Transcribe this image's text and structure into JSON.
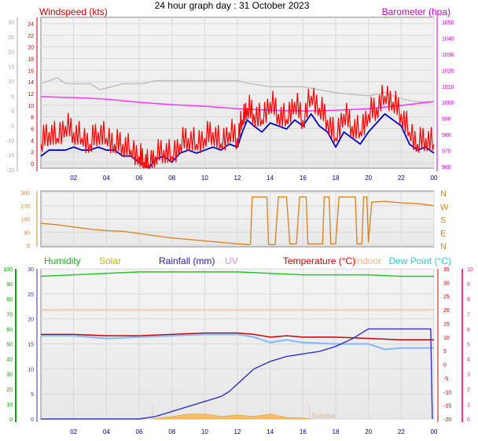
{
  "page": {
    "title": "24 hour graph day : 31 October 2023"
  },
  "colors": {
    "wind_speed": "#ff0000",
    "wind_avg": "#0000cc",
    "gust_bg": "#c0c0c0",
    "barometer": "#ff33ff",
    "wind_dir": "#d8862a",
    "humidity": "#22cc22",
    "solar": "#ccaa22",
    "solar_fill": "#ffb050",
    "rainfall": "#3333cc",
    "uv": "#dd88dd",
    "temperature": "#cc0000",
    "indoor": "#ffc0a0",
    "dew_point": "#88bbff",
    "dew_label": "#33cccc",
    "axis_left": "#00aa00",
    "axis_right_temp": "#ff3377",
    "axis_baro": "#cc00cc",
    "axis_wind": "#cc0000",
    "axis_mid": "#cc0000",
    "hour_labels": "#000088"
  },
  "time_axis": {
    "labels": [
      "02",
      "04",
      "06",
      "08",
      "10",
      "12",
      "14",
      "16",
      "18",
      "20",
      "22",
      "00"
    ]
  },
  "chart_data": [
    {
      "type": "line",
      "panel": "wind_baro",
      "title": "24 hour graph day : 31 October 2023",
      "left_label": "Windspeed (kts)",
      "right_label": "Barometer (hpa)",
      "left_outer_ticks": [
        "30",
        "25",
        "20",
        "15",
        "10",
        "5",
        "0",
        "-5",
        "-10",
        "-15",
        "-20"
      ],
      "left_inner_ticks": [
        "24",
        "22",
        "20",
        "18",
        "16",
        "14",
        "12",
        "10",
        "8",
        "6",
        "4",
        "2",
        "0"
      ],
      "right_ticks": [
        "1050",
        "1040",
        "1030",
        "1020",
        "1010",
        "1000",
        "990",
        "980",
        "970",
        "960"
      ],
      "y_wind_range": [
        0,
        25
      ],
      "y_baro_range": [
        955,
        1050
      ],
      "series": [
        {
          "key": "gust",
          "x_hours": [
            0,
            1,
            1.5,
            3,
            3.6,
            5,
            6.2,
            7,
            9,
            12,
            12.8,
            14,
            16,
            18,
            20,
            21,
            22,
            23,
            24
          ],
          "values": [
            14,
            15,
            14,
            14,
            13,
            14,
            14,
            14.5,
            14.5,
            14.5,
            14,
            13.5,
            13.5,
            12.5,
            12,
            12.5,
            11.5,
            11,
            11
          ]
        },
        {
          "key": "barometer",
          "x_hours": [
            0,
            2,
            4,
            6,
            8,
            10,
            12,
            14,
            16,
            18,
            20,
            22,
            24
          ],
          "values": [
            1000,
            999.5,
            998.5,
            996.5,
            995,
            994,
            992.5,
            991.5,
            991,
            991.5,
            992.5,
            994.5,
            997
          ]
        },
        {
          "key": "wind_avg",
          "x_hours": [
            0,
            0.5,
            1,
            1.5,
            2,
            2.5,
            3,
            3.5,
            4,
            4.5,
            5,
            5.5,
            6,
            6.3,
            6.6,
            7,
            7.5,
            8,
            8.5,
            9,
            9.5,
            10,
            10.5,
            11,
            11.5,
            12,
            12.3,
            12.6,
            13,
            13.5,
            14,
            14.5,
            15,
            15.5,
            16,
            16.5,
            17,
            17.5,
            18,
            18.5,
            19,
            19.5,
            20,
            20.5,
            21,
            21.5,
            22,
            22.5,
            23,
            23.5,
            24
          ],
          "values": [
            2,
            3,
            3,
            3,
            3.5,
            3,
            3,
            3.5,
            3,
            3,
            2,
            2,
            1,
            0.5,
            0,
            1.5,
            2,
            1,
            2.5,
            3,
            2.5,
            3,
            3.5,
            3,
            4,
            3.5,
            6,
            8,
            7,
            6,
            7.5,
            7,
            6.5,
            8,
            7,
            9,
            7,
            6,
            3.5,
            6,
            5,
            4,
            6,
            7.5,
            9,
            8,
            7,
            4,
            3,
            3.5,
            2.5
          ]
        },
        {
          "key": "wind_speed",
          "x_hours": [
            0,
            0.5,
            1,
            1.5,
            2,
            2.5,
            3,
            3.5,
            4,
            4.5,
            5,
            5.5,
            6,
            6.3,
            6.6,
            7,
            7.5,
            8,
            8.5,
            9,
            9.5,
            10,
            10.5,
            11,
            11.5,
            12,
            12.3,
            12.6,
            13,
            13.5,
            14,
            14.5,
            15,
            15.5,
            16,
            16.5,
            17,
            17.5,
            18,
            18.5,
            19,
            19.5,
            20,
            20.5,
            21,
            21.5,
            22,
            22.5,
            23,
            23.5,
            24
          ],
          "values": [
            4,
            6,
            5,
            7,
            6,
            5,
            4,
            6,
            5,
            4,
            4,
            3,
            2,
            1,
            0.5,
            2,
            3,
            2,
            4,
            5,
            4,
            5,
            6,
            4,
            6,
            5,
            8,
            10,
            9,
            8,
            11,
            9,
            8,
            11,
            8,
            12,
            10,
            8,
            5,
            9,
            7,
            6,
            9,
            10,
            12,
            11,
            9,
            6,
            4,
            5,
            4
          ]
        }
      ]
    },
    {
      "type": "line",
      "panel": "wind_direction",
      "left_ticks": [
        "360",
        "270",
        "180",
        "90",
        "0"
      ],
      "right_ticks": [
        "N",
        "W",
        "S",
        "E",
        "N"
      ],
      "y_range": [
        0,
        360
      ],
      "series": [
        {
          "key": "wind_dir",
          "x_hours": [
            0,
            1,
            2,
            3,
            4,
            5,
            6,
            7,
            8,
            9,
            10,
            11,
            11.5,
            12,
            12.8
          ],
          "values": [
            150,
            140,
            125,
            110,
            100,
            95,
            80,
            65,
            50,
            40,
            30,
            20,
            15,
            10,
            5
          ]
        },
        {
          "key": "wind_dir",
          "x_hours": [
            12.8,
            12.9,
            13.8,
            13.9,
            14.3,
            14.5,
            15,
            15.2,
            15.6,
            15.8,
            16.2,
            16.3,
            17.2,
            17.3,
            17.6,
            17.7,
            18,
            18.2,
            19.2,
            19.3,
            19.6,
            19.7,
            19.9,
            20
          ],
          "values": [
            10,
            330,
            330,
            5,
            5,
            330,
            330,
            10,
            10,
            330,
            330,
            10,
            10,
            330,
            330,
            10,
            10,
            330,
            330,
            10,
            10,
            330,
            330,
            20
          ]
        },
        {
          "key": "wind_dir",
          "x_hours": [
            20,
            20.2,
            21,
            22,
            23,
            24
          ],
          "values": [
            20,
            295,
            300,
            290,
            285,
            270
          ]
        }
      ]
    },
    {
      "type": "line",
      "panel": "multi",
      "legend": [
        "Humidity",
        "Solar",
        "Rainfall (mm)",
        "UV",
        "Temperature (°C)",
        "Indoor",
        "Dew Point (°C)"
      ],
      "left_ticks": [
        "100",
        "90",
        "80",
        "70",
        "60",
        "50",
        "40",
        "30",
        "20",
        "10",
        "0"
      ],
      "inner_ticks": [
        "30",
        "25",
        "20",
        "15",
        "10",
        "5",
        "0"
      ],
      "right_temp_ticks": [
        "35",
        "30",
        "25",
        "20",
        "15",
        "10",
        "5",
        "0",
        "-5",
        "-10",
        "-15",
        "-20"
      ],
      "right_uv_ticks": [
        "10",
        "9",
        "8",
        "7",
        "6",
        "5",
        "4",
        "3",
        "2",
        "1",
        "0"
      ],
      "annotation": "Sunrise",
      "y_rain_range": [
        0,
        30
      ],
      "y_temp_range": [
        -20,
        35
      ],
      "y_humidity_range": [
        0,
        100
      ],
      "series": [
        {
          "key": "humidity",
          "x_hours": [
            0,
            2,
            4,
            6,
            8,
            10,
            12,
            14,
            16,
            18,
            20,
            22,
            24
          ],
          "values": [
            95,
            96,
            97,
            98,
            98,
            98,
            98,
            97,
            96,
            96,
            96,
            95,
            95
          ]
        },
        {
          "key": "indoor",
          "x_hours": [
            0,
            4,
            8,
            12,
            16,
            20,
            24
          ],
          "values": [
            20,
            20,
            20,
            20,
            20,
            20,
            20
          ]
        },
        {
          "key": "temperature",
          "x_hours": [
            0,
            2,
            4,
            6,
            8,
            10,
            12,
            13,
            14,
            15,
            16,
            18,
            20,
            22,
            24
          ],
          "values": [
            11,
            11,
            10.5,
            10.5,
            11,
            11.5,
            11.5,
            11,
            10,
            10.5,
            10,
            10,
            9.5,
            9,
            9
          ]
        },
        {
          "key": "dew_point",
          "x_hours": [
            0,
            2,
            4,
            6,
            8,
            10,
            12,
            13,
            14,
            15,
            16,
            18,
            20,
            21,
            22,
            24
          ],
          "values": [
            10.5,
            10.5,
            9.5,
            10,
            10.5,
            11,
            11,
            10,
            8,
            9,
            8,
            7.5,
            7.5,
            5.5,
            6,
            6
          ]
        },
        {
          "key": "rainfall",
          "x_hours": [
            0,
            3,
            6,
            7,
            8,
            9,
            10,
            11,
            11.5,
            12,
            13,
            14,
            15,
            16,
            17,
            18,
            19,
            20,
            21,
            23.8,
            23.9
          ],
          "values": [
            0,
            0,
            0,
            0.5,
            1.5,
            2.5,
            3.5,
            4.5,
            5.5,
            7,
            10,
            11.5,
            12.5,
            13,
            13.5,
            14.5,
            16,
            18,
            18,
            18,
            0
          ]
        },
        {
          "key": "solar",
          "x_hours": [
            6.8,
            8,
            9,
            10,
            11,
            12,
            13,
            14,
            15,
            16,
            16.5
          ],
          "values": [
            0,
            0.5,
            1,
            1,
            0.5,
            0.8,
            0.5,
            1,
            0.3,
            0.2,
            0
          ]
        }
      ]
    }
  ]
}
